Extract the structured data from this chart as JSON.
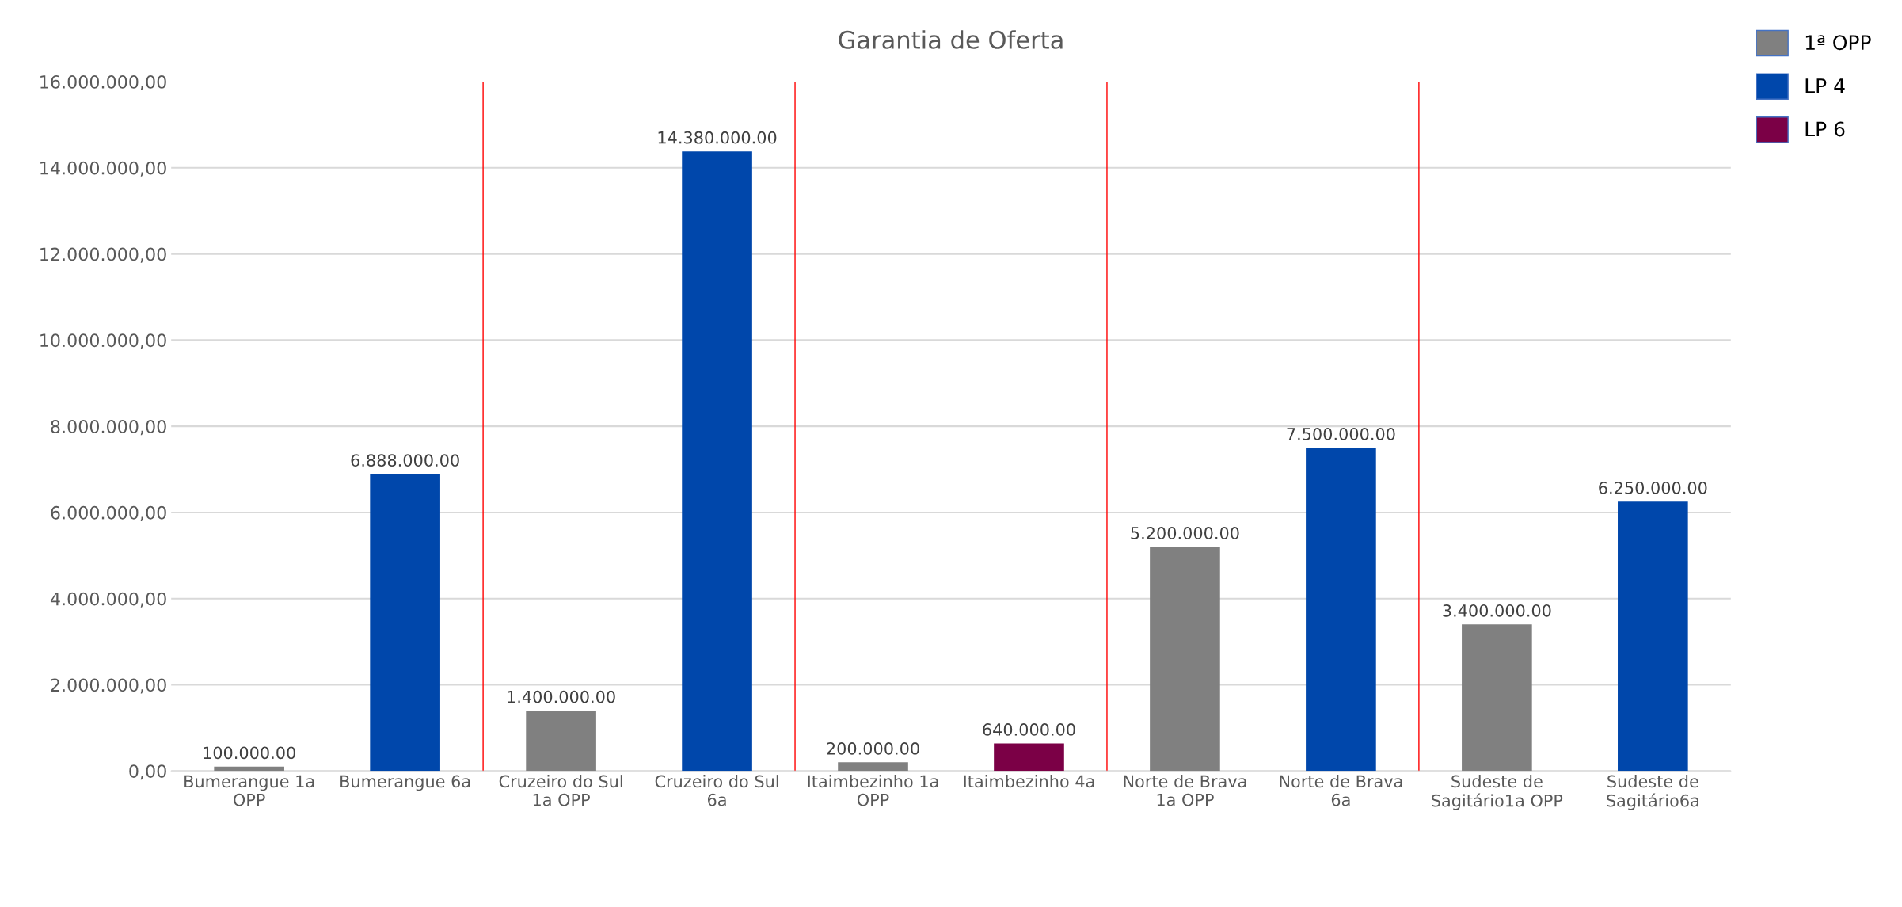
{
  "chart_data": {
    "type": "bar",
    "title": "Garantia de Oferta",
    "categories": [
      "Bumerangue 1a OPP",
      "Bumerangue 6a",
      "Cruzeiro do Sul 1a OPP",
      "Cruzeiro do Sul 6a",
      "Itaimbezinho 1a OPP",
      "Itaimbezinho 4a",
      "Norte de Brava 1a OPP",
      "Norte de Brava 6a",
      "Sudeste de Sagitário1a OPP",
      "Sudeste de Sagitário6a"
    ],
    "series": [
      {
        "name": "1ª OPP",
        "color": "#808080",
        "values": [
          100000,
          null,
          1400000,
          null,
          200000,
          null,
          5200000,
          null,
          3400000,
          null
        ],
        "value_labels": [
          "100.000.00",
          null,
          "1.400.000.00",
          null,
          "200.000.00",
          null,
          "5.200.000.00",
          null,
          "3.400.000.00",
          null
        ]
      },
      {
        "name": "LP 4",
        "color": "#0047ab",
        "values": [
          null,
          6888000,
          null,
          14380000,
          null,
          null,
          null,
          7500000,
          null,
          6250000
        ],
        "value_labels": [
          null,
          "6.888.000.00",
          null,
          "14.380.000.00",
          null,
          null,
          null,
          "7.500.000.00",
          null,
          "6.250.000.00"
        ]
      },
      {
        "name": "LP 6",
        "color": "#7b0046",
        "values": [
          null,
          null,
          null,
          null,
          null,
          640000,
          null,
          null,
          null,
          null
        ],
        "value_labels": [
          null,
          null,
          null,
          null,
          null,
          "640.000.00",
          null,
          null,
          null,
          null
        ]
      }
    ],
    "ylim": [
      0,
      16000000
    ],
    "yticks": [
      {
        "value": 0,
        "label": "0,00"
      },
      {
        "value": 2000000,
        "label": "2.000.000,00"
      },
      {
        "value": 4000000,
        "label": "4.000.000,00"
      },
      {
        "value": 6000000,
        "label": "6.000.000,00"
      },
      {
        "value": 8000000,
        "label": "8.000.000,00"
      },
      {
        "value": 10000000,
        "label": "10.000.000,00"
      },
      {
        "value": 12000000,
        "label": "12.000.000,00"
      },
      {
        "value": 14000000,
        "label": "14.000.000,00"
      },
      {
        "value": 16000000,
        "label": "16.000.000,00"
      }
    ],
    "grid": "y",
    "legend": "top right"
  }
}
